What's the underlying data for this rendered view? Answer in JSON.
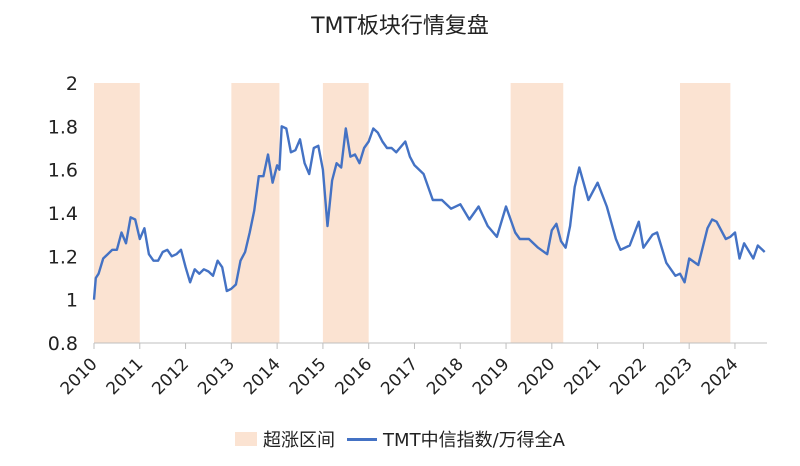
{
  "chart_data": {
    "type": "line",
    "title": "TMT板块行情复盘",
    "xlabel": "",
    "ylabel": "",
    "ylim": [
      0.8,
      2.0
    ],
    "xlim": [
      2010.0,
      2024.7
    ],
    "y_ticks": [
      "0.8",
      "1",
      "1.2",
      "1.4",
      "1.6",
      "1.8",
      "2"
    ],
    "x_ticks": [
      "2010",
      "2011",
      "2012",
      "2013",
      "2014",
      "2015",
      "2016",
      "2017",
      "2018",
      "2019",
      "2020",
      "2021",
      "2022",
      "2023",
      "2024"
    ],
    "shaded_periods": [
      [
        2010.0,
        2011.0
      ],
      [
        2013.0,
        2014.05
      ],
      [
        2015.0,
        2016.0
      ],
      [
        2019.1,
        2020.25
      ],
      [
        2022.8,
        2023.9
      ]
    ],
    "grid": false,
    "legend_position": "bottom",
    "series": [
      {
        "name": "TMT中信指数/万得全A",
        "color": "#4472C4",
        "x": [
          2010.0,
          2010.04,
          2010.1,
          2010.2,
          2010.3,
          2010.4,
          2010.5,
          2010.6,
          2010.7,
          2010.8,
          2010.9,
          2011.0,
          2011.1,
          2011.15,
          2011.2,
          2011.3,
          2011.4,
          2011.5,
          2011.6,
          2011.7,
          2011.8,
          2011.9,
          2012.0,
          2012.1,
          2012.2,
          2012.3,
          2012.4,
          2012.5,
          2012.6,
          2012.7,
          2012.8,
          2012.9,
          2013.0,
          2013.1,
          2013.2,
          2013.3,
          2013.4,
          2013.5,
          2013.6,
          2013.7,
          2013.8,
          2013.9,
          2014.0,
          2014.05,
          2014.1,
          2014.2,
          2014.3,
          2014.4,
          2014.5,
          2014.6,
          2014.7,
          2014.8,
          2014.9,
          2015.0,
          2015.1,
          2015.2,
          2015.3,
          2015.4,
          2015.5,
          2015.6,
          2015.7,
          2015.8,
          2015.9,
          2016.0,
          2016.1,
          2016.2,
          2016.3,
          2016.4,
          2016.5,
          2016.6,
          2016.8,
          2016.9,
          2017.0,
          2017.2,
          2017.4,
          2017.6,
          2017.8,
          2018.0,
          2018.2,
          2018.4,
          2018.6,
          2018.8,
          2019.0,
          2019.1,
          2019.2,
          2019.3,
          2019.5,
          2019.7,
          2019.9,
          2020.0,
          2020.1,
          2020.2,
          2020.3,
          2020.4,
          2020.5,
          2020.6,
          2020.8,
          2021.0,
          2021.2,
          2021.4,
          2021.5,
          2021.7,
          2021.9,
          2022.0,
          2022.2,
          2022.3,
          2022.5,
          2022.7,
          2022.8,
          2022.9,
          2023.0,
          2023.2,
          2023.4,
          2023.5,
          2023.6,
          2023.8,
          2023.9,
          2024.0,
          2024.1,
          2024.2,
          2024.4,
          2024.5,
          2024.65
        ],
        "values": [
          1.0,
          1.1,
          1.12,
          1.19,
          1.21,
          1.23,
          1.23,
          1.31,
          1.26,
          1.38,
          1.37,
          1.28,
          1.33,
          1.27,
          1.21,
          1.18,
          1.18,
          1.22,
          1.23,
          1.2,
          1.21,
          1.23,
          1.15,
          1.08,
          1.14,
          1.12,
          1.14,
          1.13,
          1.11,
          1.18,
          1.15,
          1.04,
          1.05,
          1.07,
          1.18,
          1.22,
          1.31,
          1.41,
          1.57,
          1.57,
          1.67,
          1.54,
          1.62,
          1.6,
          1.8,
          1.79,
          1.68,
          1.69,
          1.74,
          1.63,
          1.58,
          1.7,
          1.71,
          1.6,
          1.34,
          1.55,
          1.63,
          1.61,
          1.79,
          1.66,
          1.67,
          1.63,
          1.7,
          1.73,
          1.79,
          1.77,
          1.73,
          1.7,
          1.7,
          1.68,
          1.73,
          1.66,
          1.62,
          1.58,
          1.46,
          1.46,
          1.42,
          1.44,
          1.37,
          1.43,
          1.34,
          1.29,
          1.43,
          1.37,
          1.31,
          1.28,
          1.28,
          1.24,
          1.21,
          1.32,
          1.35,
          1.27,
          1.24,
          1.34,
          1.52,
          1.61,
          1.46,
          1.54,
          1.43,
          1.28,
          1.23,
          1.25,
          1.36,
          1.24,
          1.3,
          1.31,
          1.17,
          1.11,
          1.12,
          1.08,
          1.19,
          1.16,
          1.33,
          1.37,
          1.36,
          1.28,
          1.29,
          1.31,
          1.19,
          1.26,
          1.19,
          1.25,
          1.22
        ]
      }
    ]
  },
  "legend": {
    "band_label": "超涨区间",
    "band_color": "#FBE3D2",
    "line_label": "TMT中信指数/万得全A"
  }
}
